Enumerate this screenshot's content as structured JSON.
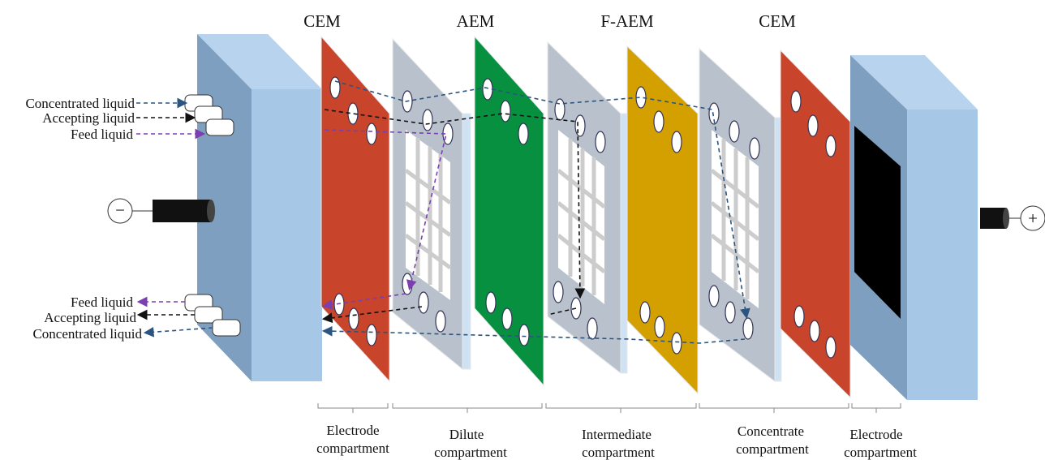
{
  "membranes": [
    {
      "label": "CEM"
    },
    {
      "label": "AEM"
    },
    {
      "label": "F-AEM"
    },
    {
      "label": "CEM"
    }
  ],
  "inlets": [
    {
      "label": "Concentrated liquid"
    },
    {
      "label": "Accepting liquid"
    },
    {
      "label": "Feed liquid"
    }
  ],
  "outlets": [
    {
      "label": "Feed liquid"
    },
    {
      "label": "Accepting liquid"
    },
    {
      "label": "Concentrated liquid"
    }
  ],
  "compartments": [
    {
      "line1": "Electrode",
      "line2": "compartment"
    },
    {
      "line1": "Dilute",
      "line2": "compartment"
    },
    {
      "line1": "Intermediate",
      "line2": "compartment"
    },
    {
      "line1": "Concentrate",
      "line2": "compartment"
    },
    {
      "line1": "Electrode",
      "line2": "compartment"
    }
  ],
  "electrodes": {
    "negative": "−",
    "positive": "+"
  }
}
